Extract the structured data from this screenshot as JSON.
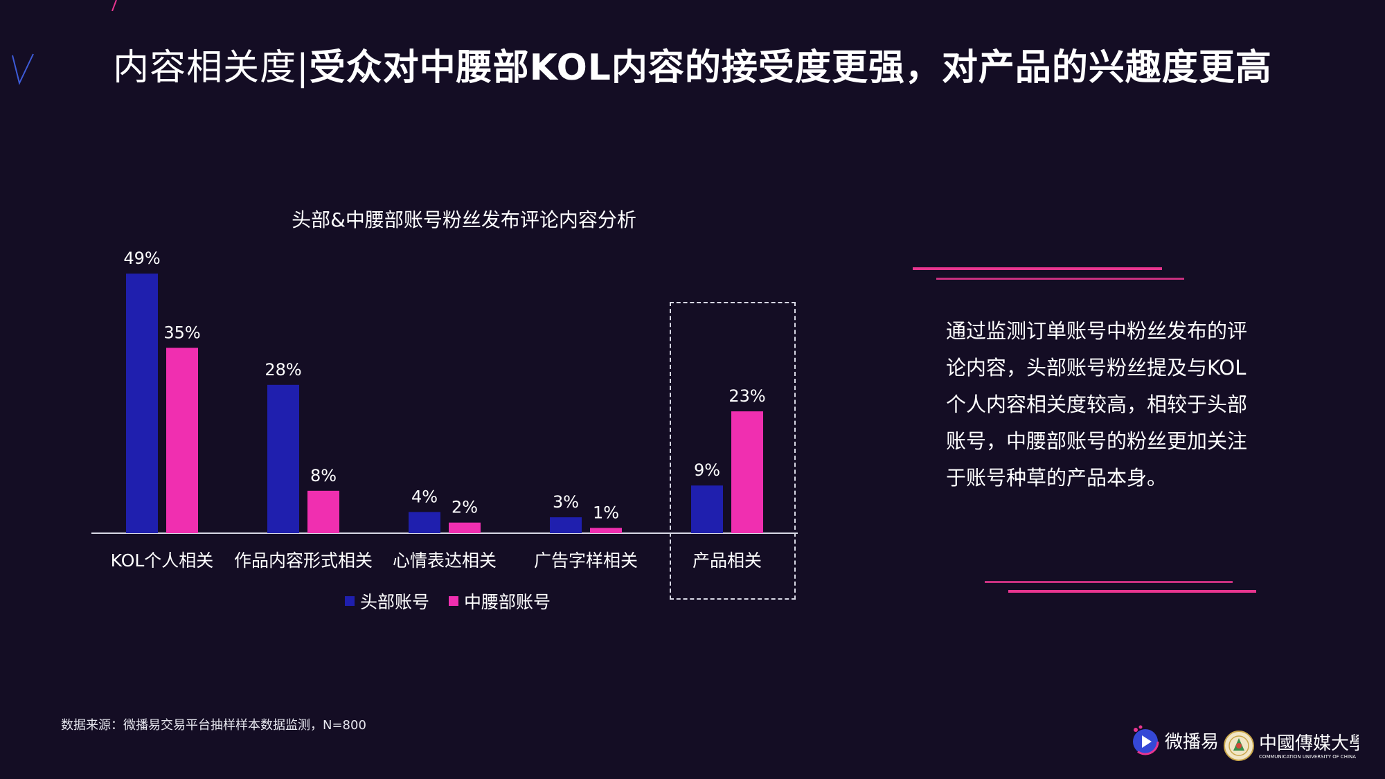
{
  "title": {
    "light": "内容相关度|",
    "bold": "受众对中腰部KOL内容的接受度更强，对产品的兴趣度更高"
  },
  "chart_data": {
    "type": "bar",
    "title": "头部&中腰部账号粉丝发布评论内容分析",
    "categories": [
      "KOL个人相关",
      "作品内容形式相关",
      "心情表达相关",
      "广告字样相关",
      "产品相关"
    ],
    "series": [
      {
        "name": "头部账号",
        "values": [
          49,
          28,
          4,
          3,
          9
        ],
        "color": "#1f1fae"
      },
      {
        "name": "中腰部账号",
        "values": [
          35,
          8,
          2,
          1,
          23
        ],
        "color": "#f02fb0"
      }
    ],
    "value_suffix": "%",
    "ylim": [
      0,
      50
    ],
    "grid": false,
    "legend_position": "bottom",
    "highlighted_category": "产品相关"
  },
  "summary": "通过监测订单账号中粉丝发布的评论内容，头部账号粉丝提及与KOL个人内容相关度较高，相较于头部账号，中腰部账号的粉丝更加关注于账号种草的产品本身。",
  "source": "数据来源：微播易交易平台抽样样本数据监测，N=800",
  "logos": {
    "weiboyi": "微播易",
    "cuc_name": "中國傳媒大學",
    "cuc_en": "COMMUNICATION UNIVERSITY OF CHINA"
  },
  "colors": {
    "background": "#140d24",
    "accent": "#e8358f",
    "series1": "#1f1fae",
    "series2": "#f02fb0"
  }
}
